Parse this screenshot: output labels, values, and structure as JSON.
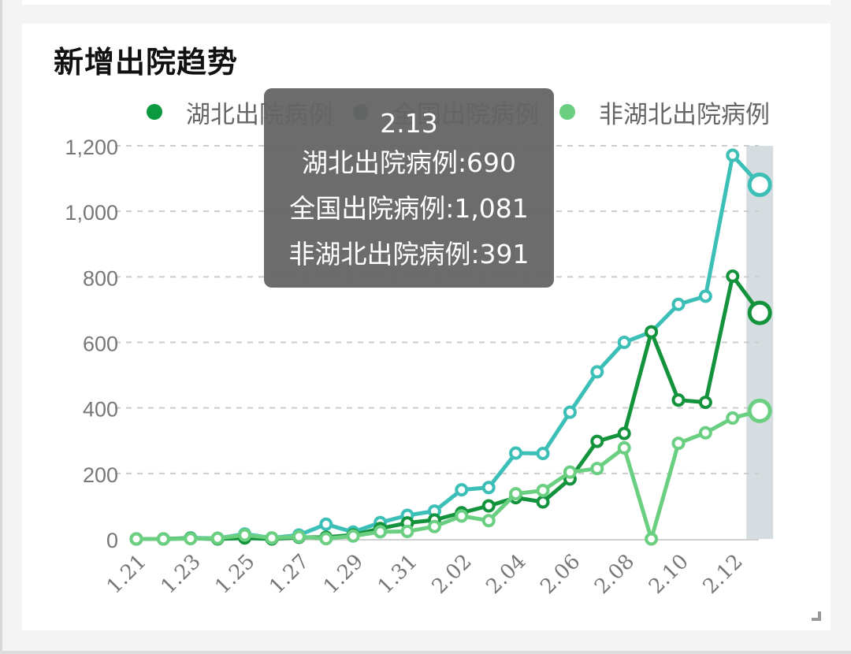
{
  "card": {
    "title": "新增出院趋势"
  },
  "legend": [
    {
      "label": "湖北出院病例",
      "color": "#0b9a3f"
    },
    {
      "label": "全国出院病例",
      "color": "#2f6f66"
    },
    {
      "label": "非湖北出院病例",
      "color": "#6acf7f"
    }
  ],
  "tooltip": {
    "date": "2.13",
    "line1": "湖北出院病例:690",
    "line2": "全国出院病例:1,081",
    "line3": "非湖北出院病例:391"
  },
  "colors": {
    "hubei": "#14933d",
    "national": "#3bbfb6",
    "non_hubei": "#6acf80",
    "highlight_band": "#d5dde0",
    "grid": "#cccccc",
    "axis_text": "#777777"
  },
  "chart_data": {
    "type": "line",
    "title": "新增出院趋势",
    "xlabel": "",
    "ylabel": "",
    "ylim": [
      0,
      1200
    ],
    "yticks": [
      "0",
      "200",
      "400",
      "600",
      "800",
      "1,000",
      "1,200"
    ],
    "grid": true,
    "legend_position": "top",
    "x": [
      "1.21",
      "1.22",
      "1.23",
      "1.24",
      "1.25",
      "1.26",
      "1.27",
      "1.28",
      "1.29",
      "1.30",
      "1.31",
      "2.01",
      "2.02",
      "2.03",
      "2.04",
      "2.05",
      "2.06",
      "2.07",
      "2.08",
      "2.09",
      "2.10",
      "2.11",
      "2.12",
      "2.13"
    ],
    "xtick_labels": [
      "1.21",
      "1.23",
      "1.25",
      "1.27",
      "1.29",
      "1.31",
      "2.02",
      "2.04",
      "2.06",
      "2.08",
      "2.10",
      "2.12"
    ],
    "series": [
      {
        "name": "湖北出院病例",
        "values": [
          0,
          0,
          2,
          0,
          3,
          0,
          5,
          5,
          12,
          32,
          49,
          58,
          80,
          101,
          126,
          113,
          183,
          298,
          322,
          632,
          424,
          417,
          802,
          690
        ]
      },
      {
        "name": "全国出院病例",
        "values": [
          0,
          0,
          3,
          2,
          15,
          3,
          12,
          45,
          21,
          50,
          72,
          85,
          150,
          157,
          262,
          261,
          387,
          510,
          600,
          632,
          716,
          741,
          1171,
          1081
        ]
      },
      {
        "name": "非湖北出院病例",
        "values": [
          0,
          0,
          1,
          2,
          12,
          3,
          7,
          1,
          9,
          22,
          23,
          38,
          70,
          56,
          138,
          148,
          204,
          215,
          278,
          0,
          292,
          324,
          369,
          391
        ]
      }
    ],
    "highlighted_x": "2.13"
  }
}
